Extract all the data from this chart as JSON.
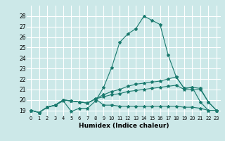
{
  "title": "",
  "xlabel": "Humidex (Indice chaleur)",
  "background_color": "#cce8e8",
  "grid_color": "#ffffff",
  "line_color": "#1a7a6e",
  "xlim": [
    -0.5,
    23.5
  ],
  "ylim": [
    18.5,
    29.0
  ],
  "xticks": [
    0,
    1,
    2,
    3,
    4,
    5,
    6,
    7,
    8,
    9,
    10,
    11,
    12,
    13,
    14,
    15,
    16,
    17,
    18,
    19,
    20,
    21,
    22,
    23
  ],
  "yticks": [
    19,
    20,
    21,
    22,
    23,
    24,
    25,
    26,
    27,
    28
  ],
  "series": [
    [
      19.0,
      18.8,
      19.3,
      19.5,
      19.9,
      18.9,
      19.2,
      19.2,
      19.9,
      21.2,
      23.1,
      25.5,
      26.3,
      26.8,
      28.0,
      27.6,
      27.2,
      24.3,
      22.2,
      21.1,
      21.2,
      19.8,
      19.0,
      19.0
    ],
    [
      19.0,
      18.8,
      19.3,
      19.5,
      20.0,
      19.9,
      19.8,
      19.7,
      20.1,
      20.5,
      20.8,
      21.0,
      21.3,
      21.5,
      21.6,
      21.7,
      21.8,
      22.0,
      22.2,
      21.1,
      21.2,
      21.1,
      19.8,
      19.0
    ],
    [
      19.0,
      18.8,
      19.3,
      19.5,
      20.0,
      19.9,
      19.8,
      19.7,
      20.1,
      20.3,
      20.5,
      20.6,
      20.8,
      20.9,
      21.0,
      21.1,
      21.2,
      21.3,
      21.4,
      21.0,
      21.0,
      21.0,
      19.8,
      19.0
    ],
    [
      19.0,
      18.8,
      19.3,
      19.5,
      20.0,
      19.9,
      19.8,
      19.7,
      20.1,
      19.5,
      19.5,
      19.4,
      19.4,
      19.4,
      19.4,
      19.4,
      19.4,
      19.4,
      19.4,
      19.3,
      19.3,
      19.2,
      19.0,
      19.0
    ]
  ]
}
